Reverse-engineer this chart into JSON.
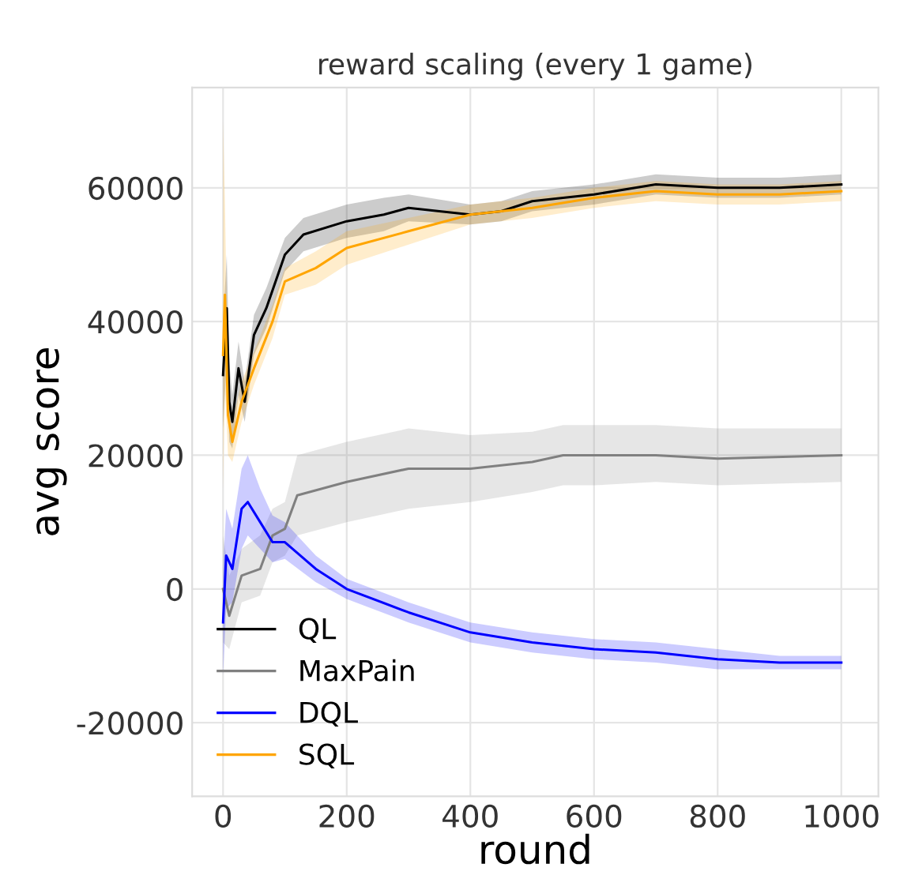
{
  "chart_data": {
    "type": "line",
    "title": "reward scaling (every 1 game)",
    "xlabel": "round",
    "ylabel": "avg score",
    "xlim": [
      -50,
      1060
    ],
    "ylim": [
      -31000,
      75000
    ],
    "xticks": [
      0,
      200,
      400,
      600,
      800,
      1000
    ],
    "yticks": [
      -20000,
      0,
      20000,
      40000,
      60000
    ],
    "grid": true,
    "legend": "bottom left",
    "line_style": "solid",
    "marker": "none",
    "series": [
      {
        "name": "QL",
        "color": "#000000",
        "x": [
          0,
          6,
          10,
          15,
          25,
          35,
          50,
          70,
          100,
          130,
          200,
          260,
          300,
          400,
          450,
          500,
          600,
          700,
          800,
          900,
          1000
        ],
        "values": [
          32000,
          42000,
          28000,
          25000,
          33000,
          28000,
          38000,
          42000,
          50000,
          53000,
          55000,
          56000,
          57000,
          56000,
          56500,
          58000,
          59000,
          60500,
          60000,
          60000,
          60500
        ],
        "lower": [
          24000,
          34000,
          22000,
          21000,
          29000,
          25000,
          35000,
          39000,
          47500,
          50500,
          52500,
          53500,
          55000,
          54500,
          55000,
          56500,
          57500,
          59000,
          58500,
          58500,
          59000
        ],
        "upper": [
          40000,
          50000,
          34000,
          29000,
          37000,
          31000,
          41000,
          45000,
          52500,
          55500,
          57500,
          58500,
          59000,
          57500,
          58000,
          59500,
          60500,
          62000,
          61500,
          61500,
          62000
        ]
      },
      {
        "name": "MaxPain",
        "color": "#808080",
        "x": [
          0,
          10,
          30,
          60,
          80,
          100,
          120,
          200,
          300,
          400,
          500,
          550,
          600,
          700,
          800,
          1000
        ],
        "values": [
          0,
          -4000,
          2000,
          3000,
          8000,
          9000,
          14000,
          16000,
          18000,
          18000,
          19000,
          20000,
          20000,
          20000,
          19500,
          20000
        ],
        "lower": [
          -8000,
          -9000,
          -2000,
          -1000,
          4000,
          5000,
          8000,
          10000,
          12000,
          13000,
          14500,
          15500,
          15500,
          16000,
          15500,
          16000
        ],
        "upper": [
          8000,
          2000,
          6000,
          8000,
          12000,
          13000,
          20000,
          22000,
          24000,
          23000,
          23500,
          24500,
          24500,
          24500,
          24000,
          24000
        ]
      },
      {
        "name": "DQL",
        "color": "#0000ff",
        "x": [
          0,
          5,
          15,
          30,
          40,
          60,
          80,
          100,
          150,
          200,
          300,
          400,
          500,
          600,
          700,
          800,
          900,
          1000
        ],
        "values": [
          -5000,
          5000,
          3000,
          12000,
          13000,
          10000,
          7000,
          7000,
          3000,
          0,
          -3500,
          -6500,
          -8000,
          -9000,
          -9500,
          -10500,
          -11000,
          -11000
        ],
        "lower": [
          -13000,
          -3000,
          -2000,
          6000,
          8000,
          6000,
          4000,
          4500,
          1000,
          -1500,
          -5000,
          -8000,
          -9500,
          -10500,
          -11000,
          -12000,
          -12000,
          -12000
        ],
        "upper": [
          3000,
          12000,
          9000,
          18000,
          20000,
          15000,
          11000,
          10000,
          5000,
          1500,
          -2000,
          -5000,
          -6500,
          -7500,
          -8000,
          -9000,
          -10000,
          -10000
        ]
      },
      {
        "name": "SQL",
        "color": "#ffa500",
        "x": [
          0,
          3,
          8,
          15,
          30,
          50,
          80,
          100,
          150,
          200,
          300,
          400,
          500,
          600,
          700,
          800,
          900,
          1000
        ],
        "values": [
          35000,
          44000,
          26000,
          22000,
          28000,
          33000,
          40000,
          46000,
          48000,
          51000,
          53500,
          56000,
          57000,
          58500,
          59500,
          59000,
          59000,
          59500
        ],
        "lower": [
          15000,
          30000,
          20000,
          19000,
          25000,
          30500,
          37500,
          44000,
          45500,
          48500,
          51500,
          54500,
          55500,
          57000,
          58000,
          57500,
          57500,
          58000
        ],
        "upper": [
          70000,
          58000,
          32000,
          25000,
          31000,
          35500,
          42500,
          48000,
          50500,
          53500,
          55500,
          57500,
          58500,
          60000,
          61000,
          60500,
          60500,
          61000
        ]
      }
    ]
  }
}
